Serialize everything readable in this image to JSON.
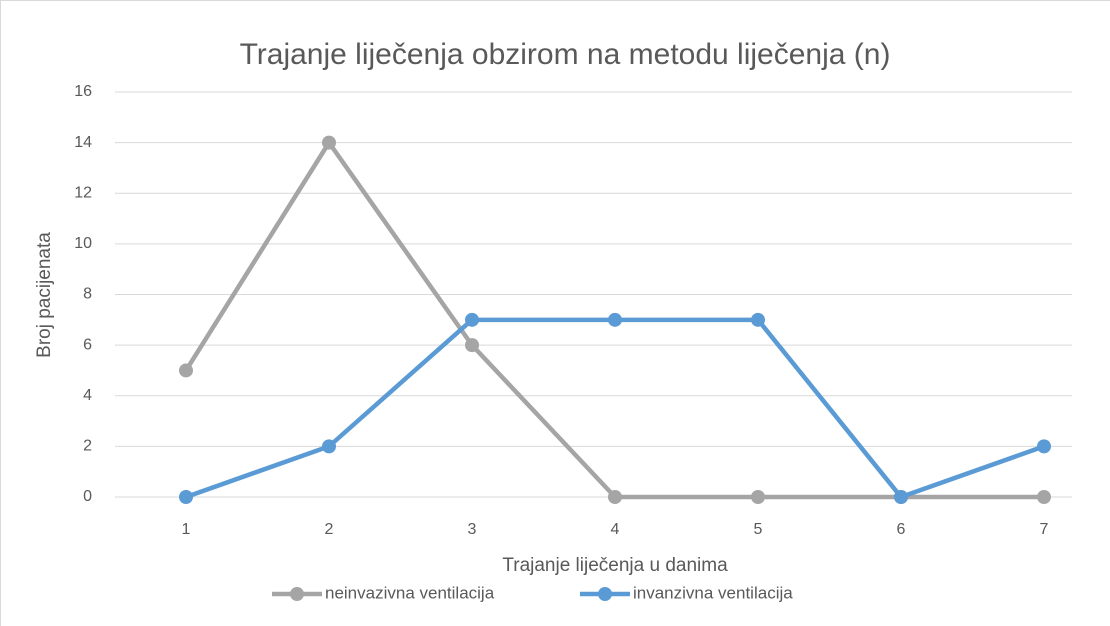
{
  "chart_data": {
    "type": "line",
    "title": "Trajanje liječenja obzirom na metodu liječenja (n)",
    "x_label": "Trajanje liječenja u danima",
    "y_label": "Broj pacijenata",
    "categories": [
      "1",
      "2",
      "3",
      "4",
      "5",
      "6",
      "7"
    ],
    "series": [
      {
        "name": "neinvazivna ventilacija",
        "color": "#a5a5a5",
        "values": [
          5,
          14,
          6,
          0,
          0,
          0,
          0
        ]
      },
      {
        "name": "invanzivna ventilacija",
        "color": "#5b9bd5",
        "values": [
          0,
          2,
          7,
          7,
          7,
          0,
          2
        ]
      }
    ],
    "ylim": [
      0,
      16
    ],
    "yticks": [
      0,
      2,
      4,
      6,
      8,
      10,
      12,
      14,
      16
    ],
    "grid": true,
    "legend": "bottom"
  }
}
